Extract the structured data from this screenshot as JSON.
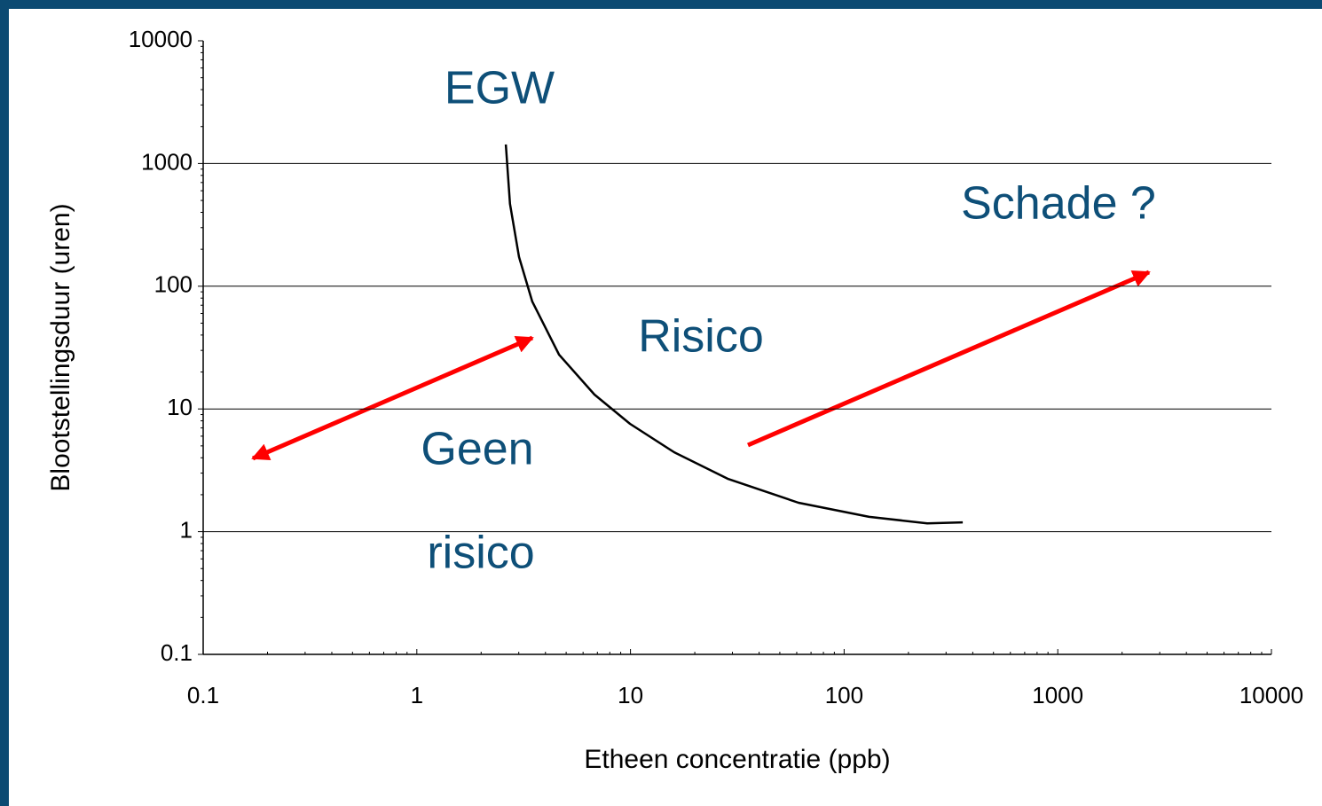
{
  "chart_data": {
    "type": "line",
    "xlabel": "Etheen concentratie (ppb)",
    "ylabel": "Blootstellingsduur (uren)",
    "xscale": "log",
    "yscale": "log",
    "xlim": [
      0.1,
      10000
    ],
    "ylim": [
      0.1,
      10000
    ],
    "xticks": [
      0.1,
      1,
      10,
      100,
      1000,
      10000
    ],
    "yticks": [
      0.1,
      1,
      10,
      100,
      1000,
      10000
    ],
    "grid": true,
    "series": [
      {
        "name": "EGW",
        "color": "#000000",
        "x": [
          2.61,
          2.73,
          3.01,
          3.47,
          4.63,
          6.78,
          9.95,
          16.0,
          28.5,
          61.2,
          131,
          245,
          359
        ],
        "values": [
          1429,
          469,
          173,
          75,
          27.7,
          13.1,
          7.56,
          4.44,
          2.7,
          1.72,
          1.32,
          1.17,
          1.19
        ]
      }
    ],
    "annotations": [
      "EGW",
      "Schade ?",
      "Risico",
      "Geen",
      "risico"
    ]
  }
}
